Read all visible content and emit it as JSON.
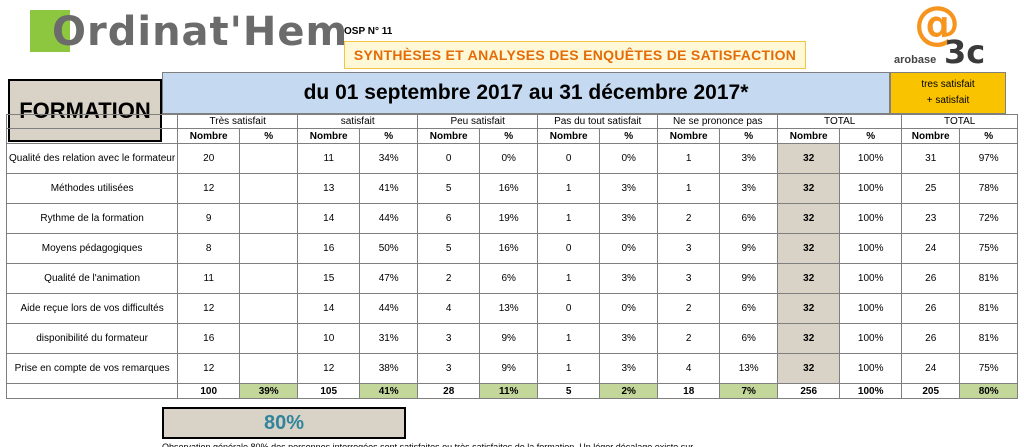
{
  "header": {
    "logo_text": "Ordinat'Hem",
    "osp": "OSP N° 11",
    "report_title": "SYNTHÈSES ET ANALYSES DES ENQUÊTES DE SATISFACTION",
    "brand_at": "@",
    "brand_word": "arobase",
    "brand_3c": "3c"
  },
  "section_label": "FORMATION",
  "period": "du 01 septembre 2017 au 31 décembre 2017*",
  "satisfied_header": {
    "line1": "tres satisfait",
    "line2": "+ satisfait"
  },
  "columns": {
    "groups": [
      "Très satisfait",
      "satisfait",
      "Peu satisfait",
      "Pas du tout satisfait",
      "Ne se prononce pas",
      "TOTAL",
      "TOTAL"
    ],
    "sub": [
      "Nombre",
      "%"
    ]
  },
  "rows": [
    {
      "label": "Qualité des relation avec le formateur",
      "v": [
        "20",
        "",
        "11",
        "34%",
        "0",
        "0%",
        "0",
        "0%",
        "1",
        "3%",
        "32",
        "100%",
        "31",
        "97%"
      ]
    },
    {
      "label": "Méthodes utilisées",
      "v": [
        "12",
        "",
        "13",
        "41%",
        "5",
        "16%",
        "1",
        "3%",
        "1",
        "3%",
        "32",
        "100%",
        "25",
        "78%"
      ]
    },
    {
      "label": "Rythme de la formation",
      "v": [
        "9",
        "",
        "14",
        "44%",
        "6",
        "19%",
        "1",
        "3%",
        "2",
        "6%",
        "32",
        "100%",
        "23",
        "72%"
      ]
    },
    {
      "label": "Moyens pédagogiques",
      "v": [
        "8",
        "",
        "16",
        "50%",
        "5",
        "16%",
        "0",
        "0%",
        "3",
        "9%",
        "32",
        "100%",
        "24",
        "75%"
      ]
    },
    {
      "label": "Qualité de l'animation",
      "v": [
        "11",
        "",
        "15",
        "47%",
        "2",
        "6%",
        "1",
        "3%",
        "3",
        "9%",
        "32",
        "100%",
        "26",
        "81%"
      ]
    },
    {
      "label": "Aide reçue lors de vos difficultés",
      "v": [
        "12",
        "",
        "14",
        "44%",
        "4",
        "13%",
        "0",
        "0%",
        "2",
        "6%",
        "32",
        "100%",
        "26",
        "81%"
      ]
    },
    {
      "label": "disponibilité du formateur",
      "v": [
        "16",
        "",
        "10",
        "31%",
        "3",
        "9%",
        "1",
        "3%",
        "2",
        "6%",
        "32",
        "100%",
        "26",
        "81%"
      ]
    },
    {
      "label": "Prise en compte de vos remarques",
      "v": [
        "12",
        "",
        "12",
        "38%",
        "3",
        "9%",
        "1",
        "3%",
        "4",
        "13%",
        "32",
        "100%",
        "24",
        "75%"
      ]
    }
  ],
  "totals": [
    "100",
    "39%",
    "105",
    "41%",
    "28",
    "11%",
    "5",
    "2%",
    "18",
    "7%",
    "256",
    "100%",
    "205",
    "80%"
  ],
  "grand_total": "80%",
  "footnote": "Observation générale 80% des personnes interrogées sont satisfaites ou très satisfaites de la formation. Un léger décalage existe sur..."
}
